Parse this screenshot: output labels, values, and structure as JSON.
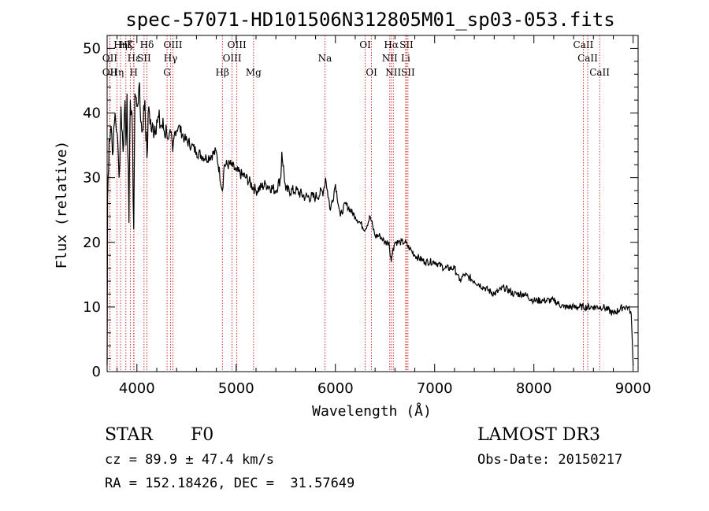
{
  "chart_data": {
    "type": "line",
    "title": "spec-57071-HD101506N312805M01_sp03-053.fits",
    "xlabel": "Wavelength (Å)",
    "ylabel": "Flux (relative)",
    "xlim": [
      3700,
      9050
    ],
    "ylim": [
      0,
      52
    ],
    "xticks": [
      4000,
      5000,
      6000,
      7000,
      8000,
      9000
    ],
    "yticks": [
      0,
      10,
      20,
      30,
      40,
      50
    ],
    "series": [
      {
        "name": "flux",
        "x": [
          3700,
          3705,
          3720,
          3740,
          3760,
          3780,
          3800,
          3820,
          3840,
          3860,
          3880,
          3890,
          3900,
          3920,
          3933,
          3950,
          3968,
          3980,
          4000,
          4020,
          4050,
          4080,
          4101,
          4120,
          4150,
          4200,
          4250,
          4300,
          4320,
          4340,
          4361,
          4380,
          4420,
          4480,
          4550,
          4600,
          4700,
          4800,
          4861,
          4880,
          4950,
          5000,
          5100,
          5200,
          5300,
          5400,
          5450,
          5460,
          5500,
          5600,
          5700,
          5800,
          5880,
          5900,
          5920,
          5950,
          6000,
          6050,
          6100,
          6200,
          6250,
          6300,
          6350,
          6400,
          6450,
          6500,
          6540,
          6563,
          6580,
          6600,
          6650,
          6700,
          6750,
          6800,
          6900,
          7000,
          7100,
          7200,
          7230,
          7250,
          7300,
          7400,
          7500,
          7600,
          7700,
          7800,
          7900,
          8000,
          8100,
          8200,
          8300,
          8400,
          8500,
          8600,
          8700,
          8800,
          8900,
          8950,
          8980,
          9000
        ],
        "values": [
          1,
          27,
          36,
          38,
          34,
          40,
          37,
          30,
          41,
          34,
          42,
          35,
          43,
          23,
          42,
          40,
          22,
          43,
          41,
          44,
          37,
          42,
          33,
          41,
          37,
          39,
          38,
          37,
          36,
          37,
          34,
          37,
          38,
          36,
          35,
          34,
          33,
          34,
          28,
          32,
          32,
          31,
          30,
          28,
          29,
          28,
          30,
          34,
          28,
          28,
          27,
          27,
          28,
          30,
          28,
          25,
          29,
          24,
          26,
          24,
          23,
          22,
          24,
          21,
          21,
          20,
          20,
          17,
          19,
          20,
          20,
          20,
          19,
          18,
          17,
          17,
          16,
          16,
          15,
          14,
          15,
          14,
          13,
          12,
          13,
          12,
          12,
          11,
          11,
          11,
          10,
          10,
          10,
          10,
          10,
          9,
          10,
          10,
          9,
          1
        ]
      }
    ],
    "spectral_lines": [
      {
        "wl": 3727,
        "label": "OII",
        "row": 2
      },
      {
        "wl": 3727,
        "label": "OII",
        "row": 3
      },
      {
        "wl": 3798,
        "label": "Hη",
        "row": 3
      },
      {
        "wl": 3835,
        "label": "Hη",
        "row": 1
      },
      {
        "wl": 3889,
        "label": "Hζ",
        "row": 1
      },
      {
        "wl": 3933,
        "label": "K",
        "row": 1
      },
      {
        "wl": 3968,
        "label": "H",
        "row": 3
      },
      {
        "wl": 3970,
        "label": "Hε",
        "row": 2
      },
      {
        "wl": 4072,
        "label": "SII",
        "row": 2
      },
      {
        "wl": 4101,
        "label": "Hδ",
        "row": 1
      },
      {
        "wl": 4304,
        "label": "G",
        "row": 3
      },
      {
        "wl": 4340,
        "label": "Hγ",
        "row": 2
      },
      {
        "wl": 4363,
        "label": "OIII",
        "row": 1
      },
      {
        "wl": 4861,
        "label": "Hβ",
        "row": 3
      },
      {
        "wl": 4959,
        "label": "OIII",
        "row": 2
      },
      {
        "wl": 5007,
        "label": "OIII",
        "row": 1
      },
      {
        "wl": 5175,
        "label": "Mg",
        "row": 3
      },
      {
        "wl": 5894,
        "label": "Na",
        "row": 2
      },
      {
        "wl": 6300,
        "label": "OI",
        "row": 1
      },
      {
        "wl": 6364,
        "label": "OI",
        "row": 3
      },
      {
        "wl": 6548,
        "label": "NII",
        "row": 2
      },
      {
        "wl": 6563,
        "label": "Hα",
        "row": 1
      },
      {
        "wl": 6583,
        "label": "NII",
        "row": 3
      },
      {
        "wl": 6708,
        "label": "Li",
        "row": 2
      },
      {
        "wl": 6716,
        "label": "SII",
        "row": 1
      },
      {
        "wl": 6731,
        "label": "SII",
        "row": 3
      },
      {
        "wl": 8498,
        "label": "CaII",
        "row": 1
      },
      {
        "wl": 8542,
        "label": "CaII",
        "row": 2
      },
      {
        "wl": 8662,
        "label": "CaII",
        "row": 3
      }
    ]
  },
  "info": {
    "class_label": "STAR",
    "subclass": "F0",
    "survey": "LAMOST DR3",
    "cz": "cz = 89.9 ± 47.4 km/s",
    "obs_date": "Obs-Date: 20150217",
    "coords": "RA = 152.18426, DEC =  31.57649"
  }
}
